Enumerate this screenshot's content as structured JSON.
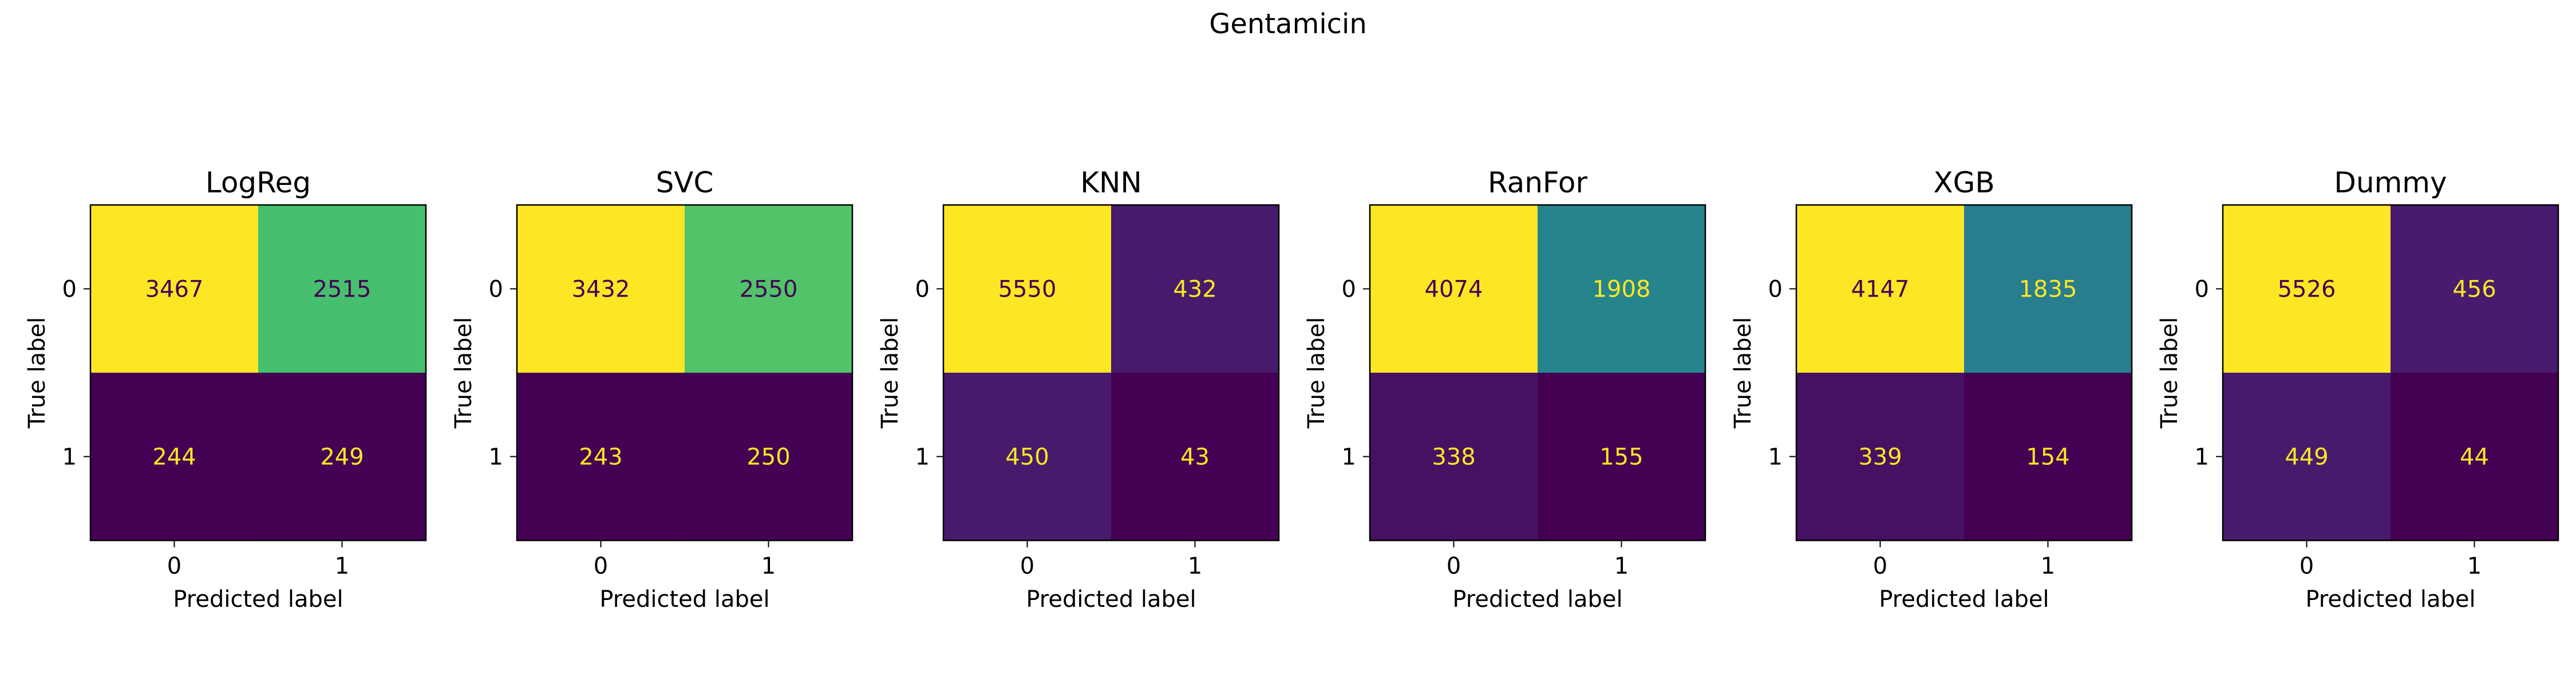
{
  "figure_title": "Gentamicin",
  "chart_data": [
    {
      "type": "heatmap",
      "title": "LogReg",
      "xlabel": "Predicted label",
      "ylabel": "True label",
      "x_ticks": [
        "0",
        "1"
      ],
      "y_ticks": [
        "0",
        "1"
      ],
      "matrix": [
        [
          3467,
          2515
        ],
        [
          244,
          249
        ]
      ],
      "colormap": "viridis"
    },
    {
      "type": "heatmap",
      "title": "SVC",
      "xlabel": "Predicted label",
      "ylabel": "True label",
      "x_ticks": [
        "0",
        "1"
      ],
      "y_ticks": [
        "0",
        "1"
      ],
      "matrix": [
        [
          3432,
          2550
        ],
        [
          243,
          250
        ]
      ],
      "colormap": "viridis"
    },
    {
      "type": "heatmap",
      "title": "KNN",
      "xlabel": "Predicted label",
      "ylabel": "True label",
      "x_ticks": [
        "0",
        "1"
      ],
      "y_ticks": [
        "0",
        "1"
      ],
      "matrix": [
        [
          5550,
          432
        ],
        [
          450,
          43
        ]
      ],
      "colormap": "viridis"
    },
    {
      "type": "heatmap",
      "title": "RanFor",
      "xlabel": "Predicted label",
      "ylabel": "True label",
      "x_ticks": [
        "0",
        "1"
      ],
      "y_ticks": [
        "0",
        "1"
      ],
      "matrix": [
        [
          4074,
          1908
        ],
        [
          338,
          155
        ]
      ],
      "colormap": "viridis"
    },
    {
      "type": "heatmap",
      "title": "XGB",
      "xlabel": "Predicted label",
      "ylabel": "True label",
      "x_ticks": [
        "0",
        "1"
      ],
      "y_ticks": [
        "0",
        "1"
      ],
      "matrix": [
        [
          4147,
          1835
        ],
        [
          339,
          154
        ]
      ],
      "colormap": "viridis"
    },
    {
      "type": "heatmap",
      "title": "Dummy",
      "xlabel": "Predicted label",
      "ylabel": "True label",
      "x_ticks": [
        "0",
        "1"
      ],
      "y_ticks": [
        "0",
        "1"
      ],
      "matrix": [
        [
          5526,
          456
        ],
        [
          449,
          44
        ]
      ],
      "colormap": "viridis"
    }
  ]
}
